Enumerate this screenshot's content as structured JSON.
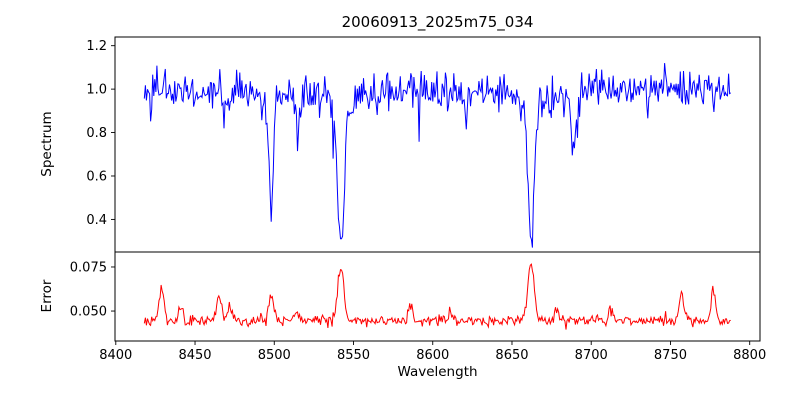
{
  "chart_data": {
    "type": "line",
    "title": "20060913_2025m75_034",
    "xlabel": "Wavelength",
    "background": "#ffffff",
    "xlim": [
      8399.5,
      8806.5
    ],
    "x_range": [
      8418,
      8788
    ],
    "n_points": 560,
    "x_ticks": [
      8400,
      8450,
      8500,
      8550,
      8600,
      8650,
      8700,
      8750,
      8800
    ],
    "x_tick_labels": [
      "8400",
      "8450",
      "8500",
      "8550",
      "8600",
      "8650",
      "8700",
      "8750",
      "8800"
    ],
    "panels": [
      {
        "name": "spectrum",
        "ylabel": "Spectrum",
        "color": "#0000ff",
        "ylim": [
          0.25,
          1.24
        ],
        "y_ticks": [
          0.4,
          0.6,
          0.8,
          1.0,
          1.2
        ],
        "y_tick_labels": [
          "0.4",
          "0.6",
          "0.8",
          "1.0",
          "1.2"
        ],
        "baseline": 1.0,
        "noise_sigma": 0.045,
        "spike_prob": 0.018,
        "spike_min": 0.05,
        "spike_max": 0.28,
        "absorption_lines": [
          {
            "center": 8498.0,
            "depth": 0.54,
            "width": 1.8
          },
          {
            "center": 8542.1,
            "depth": 0.72,
            "width": 2.6
          },
          {
            "center": 8662.1,
            "depth": 0.7,
            "width": 2.6
          },
          {
            "center": 8514.5,
            "depth": 0.22,
            "width": 1.2
          },
          {
            "center": 8688.5,
            "depth": 0.3,
            "width": 1.5
          },
          {
            "center": 8621.0,
            "depth": 0.14,
            "width": 1.0
          },
          {
            "center": 8468.0,
            "depth": 0.12,
            "width": 1.0
          },
          {
            "center": 8598.0,
            "depth": 0.1,
            "width": 1.0
          },
          {
            "center": 8736.0,
            "depth": 0.12,
            "width": 1.0
          }
        ]
      },
      {
        "name": "error",
        "ylabel": "Error",
        "color": "#ff0000",
        "ylim": [
          0.033,
          0.0835
        ],
        "y_ticks": [
          0.05,
          0.075
        ],
        "y_tick_labels": [
          "0.050",
          "0.075"
        ],
        "baseline": 0.0445,
        "noise_sigma": 0.0016,
        "peaks": [
          {
            "center": 8429,
            "height": 0.017,
            "width": 1.5
          },
          {
            "center": 8441,
            "height": 0.008,
            "width": 1.2
          },
          {
            "center": 8465,
            "height": 0.014,
            "width": 1.5
          },
          {
            "center": 8472,
            "height": 0.01,
            "width": 1.2
          },
          {
            "center": 8498,
            "height": 0.014,
            "width": 1.5
          },
          {
            "center": 8514,
            "height": 0.006,
            "width": 1.2
          },
          {
            "center": 8542,
            "height": 0.03,
            "width": 2.0
          },
          {
            "center": 8586,
            "height": 0.007,
            "width": 1.5
          },
          {
            "center": 8611,
            "height": 0.006,
            "width": 1.2
          },
          {
            "center": 8662,
            "height": 0.032,
            "width": 2.0
          },
          {
            "center": 8678,
            "height": 0.008,
            "width": 1.2
          },
          {
            "center": 8712,
            "height": 0.006,
            "width": 1.2
          },
          {
            "center": 8757,
            "height": 0.015,
            "width": 1.5
          },
          {
            "center": 8777,
            "height": 0.017,
            "width": 1.5
          }
        ]
      }
    ]
  }
}
